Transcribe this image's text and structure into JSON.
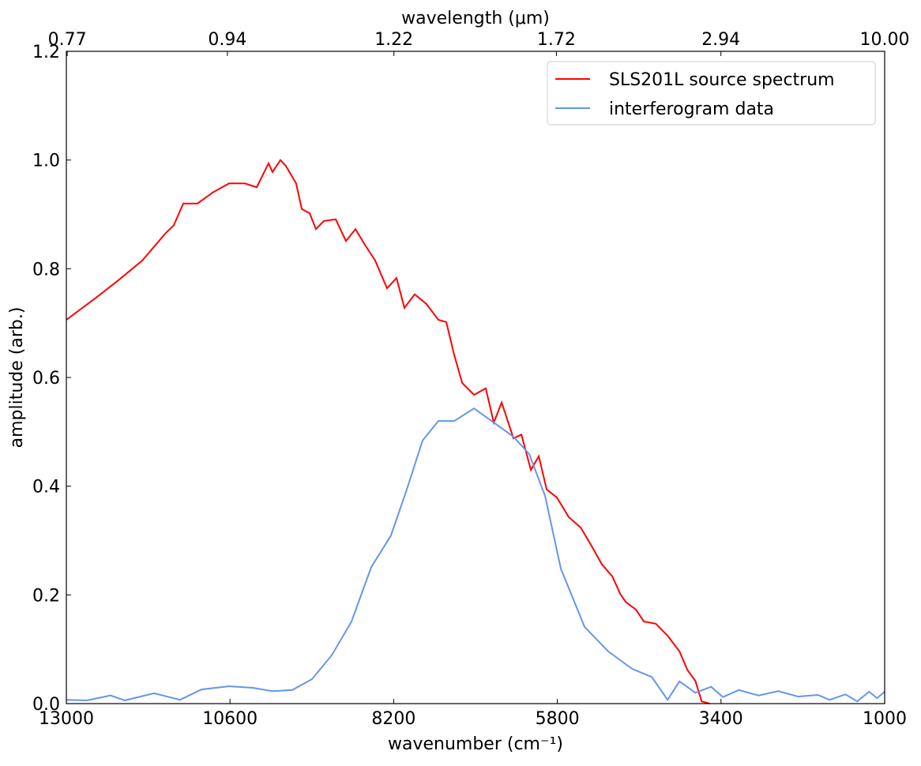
{
  "chart_data": {
    "type": "line",
    "xlabel": "wavenumber (cm⁻¹)",
    "x2label": "wavelength (μm)",
    "ylabel": "amplitude (arb.)",
    "xlim": [
      13000,
      1000
    ],
    "xticks": [
      13000,
      10600,
      8200,
      5800,
      3400,
      1000
    ],
    "x2ticks": [
      0.77,
      0.94,
      1.22,
      1.72,
      2.94,
      {
        "value": 10,
        "label": "10.00"
      }
    ],
    "ylim": [
      0,
      1.2
    ],
    "yticks": [
      {
        "value": 0,
        "label": "0.0"
      },
      0.2,
      0.4,
      0.6,
      0.8,
      {
        "value": 1,
        "label": "1.0"
      },
      1.2
    ],
    "legend": "upper right",
    "series": [
      {
        "name": "SLS201L source spectrum",
        "color": "#ff0000",
        "x": [
          13000,
          12583,
          12236,
          11888,
          11541,
          11425,
          11286,
          11077,
          10846,
          10614,
          10382,
          10209,
          10035,
          9977,
          9861,
          9780,
          9630,
          9548,
          9433,
          9340,
          9224,
          9050,
          8900,
          8761,
          8622,
          8471,
          8297,
          8158,
          8042,
          7892,
          7718,
          7544,
          7428,
          7312,
          7196,
          7022,
          6849,
          6733,
          6617,
          6443,
          6327,
          6188,
          6072,
          5956,
          5806,
          5632,
          5458,
          5307,
          5145,
          4994,
          4878,
          4797,
          4647,
          4531,
          4357,
          4183,
          4009,
          3893,
          3777,
          3684,
          3568
        ],
        "values": [
          0.706,
          0.745,
          0.779,
          0.815,
          0.866,
          0.88,
          0.92,
          0.92,
          0.941,
          0.957,
          0.957,
          0.95,
          0.994,
          0.978,
          1.0,
          0.989,
          0.957,
          0.91,
          0.902,
          0.873,
          0.888,
          0.891,
          0.851,
          0.873,
          0.844,
          0.815,
          0.764,
          0.783,
          0.728,
          0.753,
          0.735,
          0.706,
          0.702,
          0.641,
          0.59,
          0.568,
          0.58,
          0.517,
          0.554,
          0.488,
          0.495,
          0.43,
          0.455,
          0.394,
          0.379,
          0.343,
          0.324,
          0.292,
          0.256,
          0.234,
          0.202,
          0.187,
          0.173,
          0.151,
          0.147,
          0.125,
          0.096,
          0.062,
          0.042,
          0.004,
          0.0
        ]
      },
      {
        "name": "interferogram data",
        "color": "#6495ed",
        "x": [
          13000,
          12699,
          12351,
          12143,
          11714,
          11332,
          11019,
          10614,
          10266,
          9977,
          9687,
          9398,
          9108,
          8819,
          8529,
          8240,
          8008,
          7776,
          7544,
          7312,
          7022,
          6733,
          6443,
          6211,
          5979,
          5748,
          5400,
          5053,
          4705,
          4415,
          4183,
          4009,
          3777,
          3545,
          3371,
          3139,
          2849,
          2560,
          2270,
          1981,
          1807,
          1575,
          1401,
          1228,
          1112,
          1000
        ],
        "values": [
          0.007,
          0.006,
          0.015,
          0.006,
          0.019,
          0.007,
          0.026,
          0.032,
          0.029,
          0.023,
          0.025,
          0.045,
          0.089,
          0.151,
          0.251,
          0.309,
          0.394,
          0.484,
          0.52,
          0.52,
          0.543,
          0.517,
          0.491,
          0.459,
          0.382,
          0.248,
          0.141,
          0.096,
          0.064,
          0.049,
          0.007,
          0.041,
          0.02,
          0.031,
          0.012,
          0.025,
          0.015,
          0.023,
          0.013,
          0.016,
          0.007,
          0.017,
          0.004,
          0.022,
          0.01,
          0.022
        ]
      }
    ]
  }
}
